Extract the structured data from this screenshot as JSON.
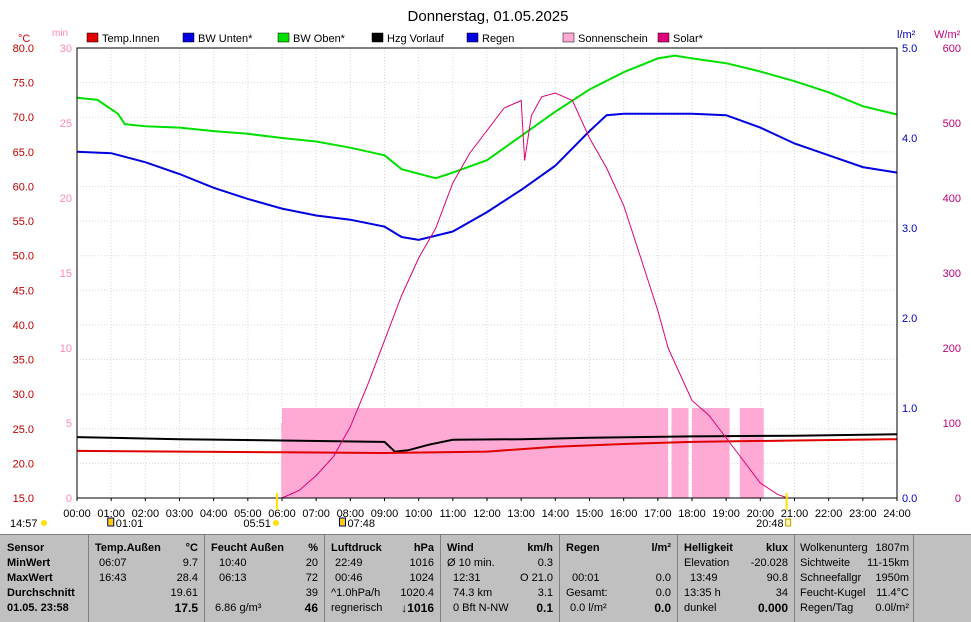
{
  "title": "Donnerstag, 01.05.2025",
  "legend": [
    {
      "label": "Temp.Innen",
      "color": "#e00000"
    },
    {
      "label": "BW Unten*",
      "color": "#0000e0"
    },
    {
      "label": "BW Oben*",
      "color": "#00e000"
    },
    {
      "label": "Hzg Vorlauf",
      "color": "#000000"
    },
    {
      "label": "Regen",
      "color": "#0000e0"
    },
    {
      "label": "Sonnenschein",
      "color": "#ffaad4"
    },
    {
      "label": "Solar*",
      "color": "#e0007a"
    }
  ],
  "axes": {
    "left_unit": "°C",
    "left2_unit": "min",
    "right_unit": "l/m²",
    "right2_unit": "W/m²",
    "left_ticks": [
      "80.0",
      "75.0",
      "70.0",
      "65.0",
      "60.0",
      "55.0",
      "50.0",
      "45.0",
      "40.0",
      "35.0",
      "30.0",
      "25.0",
      "20.0",
      "15.0"
    ],
    "left2_ticks": [
      "30",
      "25",
      "20",
      "15",
      "10",
      "5",
      "0"
    ],
    "right_ticks": [
      "5.0",
      "4.0",
      "3.0",
      "2.0",
      "1.0",
      "0.0"
    ],
    "right2_ticks": [
      "600",
      "500",
      "400",
      "300",
      "200",
      "100",
      "0"
    ],
    "x_ticks": [
      "00:00",
      "01:00",
      "02:00",
      "03:00",
      "04:00",
      "05:00",
      "06:00",
      "07:00",
      "08:00",
      "09:00",
      "10:00",
      "11:00",
      "12:00",
      "13:00",
      "14:00",
      "15:00",
      "16:00",
      "17:00",
      "18:00",
      "19:00",
      "20:00",
      "21:00",
      "22:00",
      "23:00",
      "24:00"
    ]
  },
  "markers": {
    "moon_set": "14:57",
    "moon_rise": "01:01",
    "sunrise": "05:51",
    "dawn": "07:48",
    "sunset": "20:48"
  },
  "chart_data": {
    "type": "line",
    "x_range": [
      "00:00",
      "24:00"
    ],
    "ylim_temp": [
      15,
      80
    ],
    "ylim_sun_min": [
      0,
      30
    ],
    "ylim_rain": [
      0,
      5
    ],
    "ylim_solar": [
      0,
      600
    ],
    "series": [
      {
        "name": "BW Oben*",
        "unit": "°C",
        "color": "#00e000",
        "points": [
          [
            0,
            72.8
          ],
          [
            0.6,
            72.5
          ],
          [
            1.2,
            70.5
          ],
          [
            1.4,
            69.0
          ],
          [
            2,
            68.7
          ],
          [
            3,
            68.5
          ],
          [
            4,
            68.0
          ],
          [
            5,
            67.6
          ],
          [
            6,
            67.0
          ],
          [
            7,
            66.5
          ],
          [
            8,
            65.6
          ],
          [
            9,
            64.5
          ],
          [
            9.5,
            62.5
          ],
          [
            10.5,
            61.2
          ],
          [
            11,
            62.0
          ],
          [
            12,
            63.8
          ],
          [
            13,
            67.3
          ],
          [
            14,
            70.8
          ],
          [
            15,
            74.0
          ],
          [
            16,
            76.5
          ],
          [
            17,
            78.5
          ],
          [
            17.5,
            78.9
          ],
          [
            18,
            78.5
          ],
          [
            19,
            77.8
          ],
          [
            20,
            76.6
          ],
          [
            21,
            75.2
          ],
          [
            22,
            73.6
          ],
          [
            23,
            71.6
          ],
          [
            24,
            70.4
          ]
        ]
      },
      {
        "name": "BW Unten*",
        "unit": "°C",
        "color": "#0000e0",
        "points": [
          [
            0,
            65.0
          ],
          [
            1,
            64.8
          ],
          [
            2,
            63.5
          ],
          [
            3,
            61.8
          ],
          [
            4,
            59.8
          ],
          [
            5,
            58.2
          ],
          [
            6,
            56.8
          ],
          [
            7,
            55.8
          ],
          [
            8,
            55.2
          ],
          [
            9,
            54.2
          ],
          [
            9.5,
            52.7
          ],
          [
            10,
            52.3
          ],
          [
            11,
            53.5
          ],
          [
            12,
            56.3
          ],
          [
            13,
            59.5
          ],
          [
            14,
            63.0
          ],
          [
            15,
            68.0
          ],
          [
            15.5,
            70.3
          ],
          [
            16,
            70.5
          ],
          [
            17,
            70.5
          ],
          [
            18,
            70.5
          ],
          [
            19,
            70.3
          ],
          [
            20,
            68.5
          ],
          [
            21,
            66.2
          ],
          [
            22,
            64.5
          ],
          [
            23,
            62.8
          ],
          [
            24,
            62.0
          ]
        ]
      },
      {
        "name": "Hzg Vorlauf",
        "unit": "°C",
        "color": "#000000",
        "points": [
          [
            0,
            23.8
          ],
          [
            3,
            23.5
          ],
          [
            6,
            23.3
          ],
          [
            9,
            23.1
          ],
          [
            9.3,
            21.7
          ],
          [
            9.7,
            21.9
          ],
          [
            10.3,
            22.7
          ],
          [
            11,
            23.4
          ],
          [
            13,
            23.5
          ],
          [
            15,
            23.7
          ],
          [
            18,
            23.9
          ],
          [
            21,
            24.0
          ],
          [
            24,
            24.2
          ]
        ]
      },
      {
        "name": "Temp.Innen",
        "unit": "°C",
        "color": "#e00000",
        "points": [
          [
            0,
            21.8
          ],
          [
            6,
            21.6
          ],
          [
            9,
            21.5
          ],
          [
            12,
            21.7
          ],
          [
            14,
            22.4
          ],
          [
            16,
            22.8
          ],
          [
            18,
            23.1
          ],
          [
            21,
            23.3
          ],
          [
            24,
            23.5
          ]
        ]
      },
      {
        "name": "Solar*",
        "unit": "W/m²",
        "color": "#e0007a",
        "points": [
          [
            6,
            0
          ],
          [
            6.5,
            10
          ],
          [
            7,
            30
          ],
          [
            7.5,
            55
          ],
          [
            8,
            95
          ],
          [
            8.5,
            150
          ],
          [
            9,
            210
          ],
          [
            9.5,
            270
          ],
          [
            10,
            320
          ],
          [
            10.5,
            360
          ],
          [
            11,
            420
          ],
          [
            11.5,
            460
          ],
          [
            12,
            490
          ],
          [
            12.5,
            520
          ],
          [
            13,
            530
          ],
          [
            13.1,
            450
          ],
          [
            13.3,
            510
          ],
          [
            13.6,
            535
          ],
          [
            14,
            540
          ],
          [
            14.5,
            530
          ],
          [
            15,
            480
          ],
          [
            15.5,
            440
          ],
          [
            16,
            390
          ],
          [
            16.5,
            320
          ],
          [
            17,
            250
          ],
          [
            17.3,
            200
          ],
          [
            17.5,
            180
          ],
          [
            17.8,
            150
          ],
          [
            18,
            130
          ],
          [
            18.5,
            110
          ],
          [
            19,
            80
          ],
          [
            19.5,
            50
          ],
          [
            20,
            20
          ],
          [
            20.5,
            5
          ],
          [
            20.8,
            0
          ]
        ]
      },
      {
        "name": "Sonnenschein",
        "unit": "min",
        "color": "#ffaad4",
        "bars": [
          [
            6.0,
            17.3,
            6
          ],
          [
            17.4,
            17.9,
            6
          ],
          [
            18.0,
            19.1,
            6
          ],
          [
            19.4,
            20.1,
            6
          ]
        ]
      }
    ]
  },
  "table": {
    "sensor": {
      "h": "Sensor",
      "min": "MinWert",
      "max": "MaxWert",
      "avg": "Durchschnitt",
      "now": "01.05. 23:58"
    },
    "temp": {
      "h": "Temp.Außen",
      "unit": "°C",
      "min_t": "06:07",
      "min_v": "9.7",
      "max_t": "16:43",
      "max_v": "28.4",
      "avg": "19.61",
      "now": "17.5"
    },
    "hum": {
      "h": "Feucht Außen",
      "unit": "%",
      "min_t": "10:40",
      "min_v": "20",
      "max_t": "06:13",
      "max_v": "72",
      "avg": "39",
      "abs": "6.86 g/m³",
      "now": "46"
    },
    "press": {
      "h": "Luftdruck",
      "unit": "hPa",
      "min_t": "22:49",
      "min_v": "1016",
      "max_t": "00:46",
      "max_v": "1024",
      "avg_l": "^1.0hPa/h",
      "avg": "1020.4",
      "trend": "regnerisch",
      "now": "↓1016"
    },
    "wind": {
      "h": "Wind",
      "unit": "km/h",
      "r1_l": "Ø 10 min.",
      "r1_v": "0.3",
      "r2_l": "12:31",
      "r2_v": "O 21.0",
      "r3_l": "74.3 km",
      "r3_v": "3.1",
      "r4_l": "0 Bft N-NW",
      "now": "0.1"
    },
    "rain": {
      "h": "Regen",
      "unit": "l/m²",
      "r2_l": "00:01",
      "r2_v": "0.0",
      "r3_l": "Gesamt:",
      "r3_v": "0.0",
      "r4_l": "0.0 l/m²",
      "now": "0.0"
    },
    "light": {
      "h": "Helligkeit",
      "unit": "klux",
      "r1_l": "Elevation",
      "r1_v": "-20.028",
      "r2_l": "13:49",
      "r2_v": "90.8",
      "r3_l": "13:35 h",
      "r3_v": "34",
      "r4_l": "dunkel",
      "now": "0.000"
    },
    "misc": {
      "r0_l": "Wolkenunterg",
      "r0_v": "1807m",
      "r1_l": "Sichtweite",
      "r1_v": "11-15km",
      "r2_l": "Schneefallgr",
      "r2_v": "1950m",
      "r3_l": "Feucht-Kugel",
      "r3_v": "11.4°C",
      "r4_l": "Regen/Tag",
      "r4_v": "0.0l/m²"
    }
  }
}
